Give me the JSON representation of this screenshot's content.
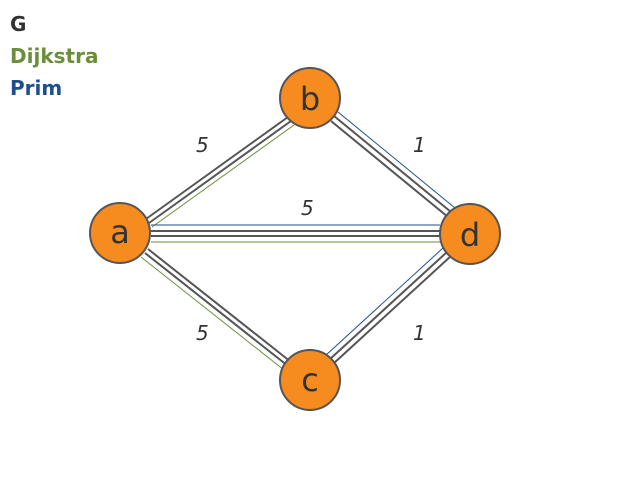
{
  "legend": {
    "graph_label": "G",
    "dijkstra_label": "Dijkstra",
    "prim_label": "Prim"
  },
  "colors": {
    "graph": "#555555",
    "dijkstra": "#6b8e3a",
    "prim": "#1f4e8c",
    "node_fill": "#f68b1f",
    "node_stroke": "#555555"
  },
  "nodes": {
    "a": "a",
    "b": "b",
    "c": "c",
    "d": "d"
  },
  "edges": {
    "ab": "5",
    "bd": "1",
    "ad": "5",
    "ac": "5",
    "cd": "1"
  }
}
